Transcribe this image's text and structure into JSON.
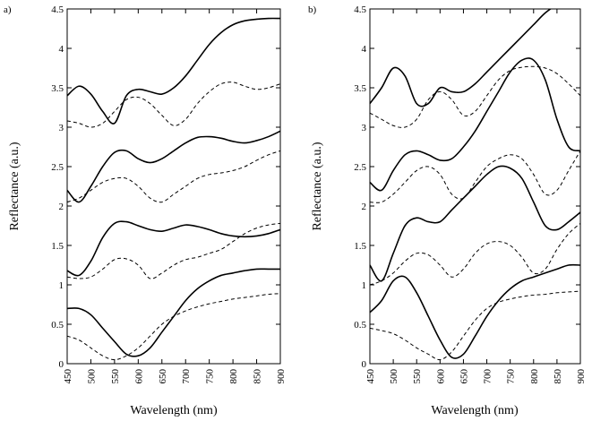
{
  "chart_data": [
    {
      "type": "line",
      "panel_label": "a)",
      "xlabel": "Wavelength (nm)",
      "ylabel": "Reflectance (a.u.)",
      "xlim": [
        450,
        900
      ],
      "ylim": [
        0,
        4.5
      ],
      "xticks": [
        450,
        500,
        550,
        600,
        650,
        700,
        750,
        800,
        850,
        900
      ],
      "yticks": [
        0,
        0.5,
        1,
        1.5,
        2,
        2.5,
        3,
        3.5,
        4,
        4.5
      ],
      "grid": false,
      "series": [
        {
          "style": "solid",
          "x": [
            450,
            475,
            500,
            525,
            550,
            575,
            600,
            625,
            650,
            675,
            700,
            725,
            750,
            775,
            800,
            825,
            850,
            875,
            900
          ],
          "y": [
            3.4,
            3.52,
            3.42,
            3.2,
            3.05,
            3.4,
            3.48,
            3.45,
            3.42,
            3.5,
            3.65,
            3.85,
            4.05,
            4.2,
            4.3,
            4.35,
            4.37,
            4.38,
            4.38
          ]
        },
        {
          "style": "dashed",
          "x": [
            450,
            475,
            500,
            525,
            550,
            575,
            600,
            625,
            650,
            675,
            700,
            725,
            750,
            775,
            800,
            825,
            850,
            875,
            900
          ],
          "y": [
            3.08,
            3.05,
            3.0,
            3.05,
            3.2,
            3.35,
            3.38,
            3.3,
            3.15,
            3.02,
            3.1,
            3.3,
            3.45,
            3.55,
            3.57,
            3.52,
            3.48,
            3.5,
            3.55
          ]
        },
        {
          "style": "solid",
          "x": [
            450,
            475,
            500,
            525,
            550,
            575,
            600,
            625,
            650,
            675,
            700,
            725,
            750,
            775,
            800,
            825,
            850,
            875,
            900
          ],
          "y": [
            2.2,
            2.05,
            2.25,
            2.5,
            2.68,
            2.7,
            2.6,
            2.55,
            2.6,
            2.7,
            2.8,
            2.87,
            2.88,
            2.86,
            2.82,
            2.8,
            2.83,
            2.88,
            2.95
          ]
        },
        {
          "style": "dashed",
          "x": [
            450,
            475,
            500,
            525,
            550,
            575,
            600,
            625,
            650,
            675,
            700,
            725,
            750,
            775,
            800,
            825,
            850,
            875,
            900
          ],
          "y": [
            2.05,
            2.1,
            2.2,
            2.3,
            2.35,
            2.35,
            2.25,
            2.1,
            2.05,
            2.15,
            2.25,
            2.35,
            2.4,
            2.42,
            2.45,
            2.5,
            2.58,
            2.65,
            2.7
          ]
        },
        {
          "style": "solid",
          "x": [
            450,
            475,
            500,
            525,
            550,
            575,
            600,
            625,
            650,
            675,
            700,
            725,
            750,
            775,
            800,
            825,
            850,
            875,
            900
          ],
          "y": [
            1.18,
            1.12,
            1.3,
            1.6,
            1.78,
            1.8,
            1.75,
            1.7,
            1.68,
            1.72,
            1.76,
            1.74,
            1.7,
            1.65,
            1.62,
            1.61,
            1.62,
            1.65,
            1.7
          ]
        },
        {
          "style": "dashed",
          "x": [
            450,
            475,
            500,
            525,
            550,
            575,
            600,
            625,
            650,
            675,
            700,
            725,
            750,
            775,
            800,
            825,
            850,
            875,
            900
          ],
          "y": [
            1.1,
            1.08,
            1.1,
            1.2,
            1.32,
            1.33,
            1.25,
            1.08,
            1.15,
            1.25,
            1.32,
            1.35,
            1.4,
            1.45,
            1.55,
            1.65,
            1.72,
            1.76,
            1.78
          ]
        },
        {
          "style": "solid",
          "x": [
            450,
            475,
            500,
            525,
            550,
            575,
            600,
            625,
            650,
            675,
            700,
            725,
            750,
            775,
            800,
            825,
            850,
            875,
            900
          ],
          "y": [
            0.7,
            0.7,
            0.62,
            0.45,
            0.28,
            0.12,
            0.1,
            0.2,
            0.4,
            0.6,
            0.8,
            0.95,
            1.05,
            1.12,
            1.15,
            1.18,
            1.2,
            1.2,
            1.2
          ]
        },
        {
          "style": "dashed",
          "x": [
            450,
            475,
            500,
            525,
            550,
            575,
            600,
            625,
            650,
            675,
            700,
            725,
            750,
            775,
            800,
            825,
            850,
            875,
            900
          ],
          "y": [
            0.35,
            0.3,
            0.2,
            0.1,
            0.05,
            0.1,
            0.2,
            0.35,
            0.5,
            0.6,
            0.67,
            0.72,
            0.76,
            0.79,
            0.82,
            0.84,
            0.86,
            0.88,
            0.89
          ]
        }
      ]
    },
    {
      "type": "line",
      "panel_label": "b)",
      "xlabel": "Wavelength (nm)",
      "ylabel": "Reflectance (a.u.)",
      "xlim": [
        450,
        900
      ],
      "ylim": [
        0,
        4.5
      ],
      "xticks": [
        450,
        500,
        550,
        600,
        650,
        700,
        750,
        800,
        850,
        900
      ],
      "yticks": [
        0,
        0.5,
        1,
        1.5,
        2,
        2.5,
        3,
        3.5,
        4,
        4.5
      ],
      "grid": false,
      "series": [
        {
          "style": "solid",
          "x": [
            450,
            475,
            500,
            525,
            550,
            575,
            600,
            625,
            650,
            675,
            700,
            725,
            750,
            775,
            800,
            825,
            850,
            875,
            900
          ],
          "y": [
            3.3,
            3.5,
            3.75,
            3.65,
            3.3,
            3.3,
            3.5,
            3.45,
            3.45,
            3.55,
            3.7,
            3.85,
            4.0,
            4.15,
            4.3,
            4.45,
            4.55,
            4.6,
            4.65
          ]
        },
        {
          "style": "dashed",
          "x": [
            450,
            475,
            500,
            525,
            550,
            575,
            600,
            625,
            650,
            675,
            700,
            725,
            750,
            775,
            800,
            825,
            850,
            875,
            900
          ],
          "y": [
            3.18,
            3.1,
            3.02,
            3.0,
            3.1,
            3.35,
            3.45,
            3.35,
            3.15,
            3.2,
            3.4,
            3.6,
            3.72,
            3.76,
            3.77,
            3.75,
            3.68,
            3.55,
            3.4
          ]
        },
        {
          "style": "solid",
          "x": [
            450,
            475,
            500,
            525,
            550,
            575,
            600,
            625,
            650,
            675,
            700,
            725,
            750,
            775,
            800,
            825,
            850,
            875,
            900
          ],
          "y": [
            2.3,
            2.2,
            2.45,
            2.65,
            2.7,
            2.65,
            2.58,
            2.6,
            2.75,
            2.95,
            3.2,
            3.45,
            3.7,
            3.85,
            3.85,
            3.6,
            3.1,
            2.75,
            2.7
          ]
        },
        {
          "style": "dashed",
          "x": [
            450,
            475,
            500,
            525,
            550,
            575,
            600,
            625,
            650,
            675,
            700,
            725,
            750,
            775,
            800,
            825,
            850,
            875,
            900
          ],
          "y": [
            2.05,
            2.05,
            2.15,
            2.3,
            2.45,
            2.5,
            2.4,
            2.15,
            2.1,
            2.3,
            2.5,
            2.6,
            2.65,
            2.6,
            2.4,
            2.15,
            2.2,
            2.45,
            2.7
          ]
        },
        {
          "style": "solid",
          "x": [
            450,
            475,
            500,
            525,
            550,
            575,
            600,
            625,
            650,
            675,
            700,
            725,
            750,
            775,
            800,
            825,
            850,
            875,
            900
          ],
          "y": [
            1.25,
            1.05,
            1.4,
            1.75,
            1.85,
            1.8,
            1.8,
            1.95,
            2.1,
            2.25,
            2.4,
            2.5,
            2.48,
            2.35,
            2.05,
            1.75,
            1.7,
            1.8,
            1.92
          ]
        },
        {
          "style": "dashed",
          "x": [
            450,
            475,
            500,
            525,
            550,
            575,
            600,
            625,
            650,
            675,
            700,
            725,
            750,
            775,
            800,
            825,
            850,
            875,
            900
          ],
          "y": [
            1.0,
            1.05,
            1.15,
            1.3,
            1.4,
            1.38,
            1.25,
            1.1,
            1.2,
            1.4,
            1.52,
            1.55,
            1.5,
            1.35,
            1.15,
            1.2,
            1.45,
            1.65,
            1.78
          ]
        },
        {
          "style": "solid",
          "x": [
            450,
            475,
            500,
            525,
            550,
            575,
            600,
            625,
            650,
            675,
            700,
            725,
            750,
            775,
            800,
            825,
            850,
            875,
            900
          ],
          "y": [
            0.65,
            0.8,
            1.05,
            1.1,
            0.9,
            0.6,
            0.3,
            0.08,
            0.12,
            0.35,
            0.6,
            0.8,
            0.95,
            1.05,
            1.1,
            1.15,
            1.2,
            1.25,
            1.25
          ]
        },
        {
          "style": "dashed",
          "x": [
            450,
            475,
            500,
            525,
            550,
            575,
            600,
            625,
            650,
            675,
            700,
            725,
            750,
            775,
            800,
            825,
            850,
            875,
            900
          ],
          "y": [
            0.45,
            0.42,
            0.38,
            0.3,
            0.2,
            0.12,
            0.05,
            0.15,
            0.35,
            0.55,
            0.7,
            0.78,
            0.82,
            0.85,
            0.87,
            0.88,
            0.9,
            0.91,
            0.92
          ]
        }
      ]
    }
  ]
}
